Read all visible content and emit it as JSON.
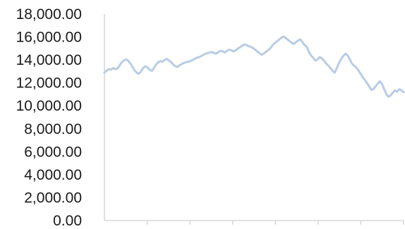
{
  "chart_data": {
    "type": "line",
    "title": "",
    "xlabel": "",
    "ylabel": "",
    "ylim": [
      0,
      18000
    ],
    "y_ticks": [
      {
        "value": 0,
        "label": "0.00"
      },
      {
        "value": 2000,
        "label": "2,000.00"
      },
      {
        "value": 4000,
        "label": "4,000.00"
      },
      {
        "value": 6000,
        "label": "6,000.00"
      },
      {
        "value": 8000,
        "label": "8,000.00"
      },
      {
        "value": 10000,
        "label": "10,000.00"
      },
      {
        "value": 12000,
        "label": "12,000.00"
      },
      {
        "value": 14000,
        "label": "14,000.00"
      },
      {
        "value": 16000,
        "label": "16,000.00"
      },
      {
        "value": 18000,
        "label": "18,000.00"
      }
    ],
    "x_tick_count": 7,
    "grid": false,
    "legend": "none",
    "color": "#b8cce4",
    "series": [
      {
        "values": [
          12900,
          13050,
          13200,
          13150,
          13300,
          13200,
          13250,
          13500,
          13800,
          13950,
          14050,
          13950,
          13700,
          13400,
          13100,
          12900,
          12800,
          13000,
          13300,
          13450,
          13350,
          13150,
          13050,
          13300,
          13600,
          13800,
          13900,
          13850,
          14000,
          14100,
          13950,
          13800,
          13600,
          13450,
          13400,
          13550,
          13650,
          13750,
          13800,
          13850,
          13900,
          14000,
          14100,
          14200,
          14250,
          14350,
          14450,
          14550,
          14600,
          14650,
          14700,
          14600,
          14550,
          14700,
          14800,
          14750,
          14650,
          14800,
          14900,
          14850,
          14750,
          14850,
          15000,
          15100,
          15250,
          15350,
          15300,
          15200,
          15150,
          15050,
          14900,
          14750,
          14600,
          14450,
          14550,
          14700,
          14850,
          15000,
          15250,
          15450,
          15600,
          15750,
          15900,
          16050,
          15950,
          15800,
          15650,
          15500,
          15400,
          15550,
          15700,
          15800,
          15550,
          15300,
          15150,
          14700,
          14400,
          14200,
          13950,
          14050,
          14250,
          14150,
          13950,
          13700,
          13500,
          13300,
          13050,
          12900,
          13300,
          13750,
          14100,
          14350,
          14550,
          14400,
          14050,
          13700,
          13500,
          13350,
          13100,
          12800,
          12500,
          12250,
          12000,
          11700,
          11400,
          11450,
          11700,
          11950,
          12150,
          11900,
          11450,
          11000,
          10800,
          10900,
          11150,
          11350,
          11250,
          11450,
          11350,
          11200
        ]
      }
    ]
  }
}
